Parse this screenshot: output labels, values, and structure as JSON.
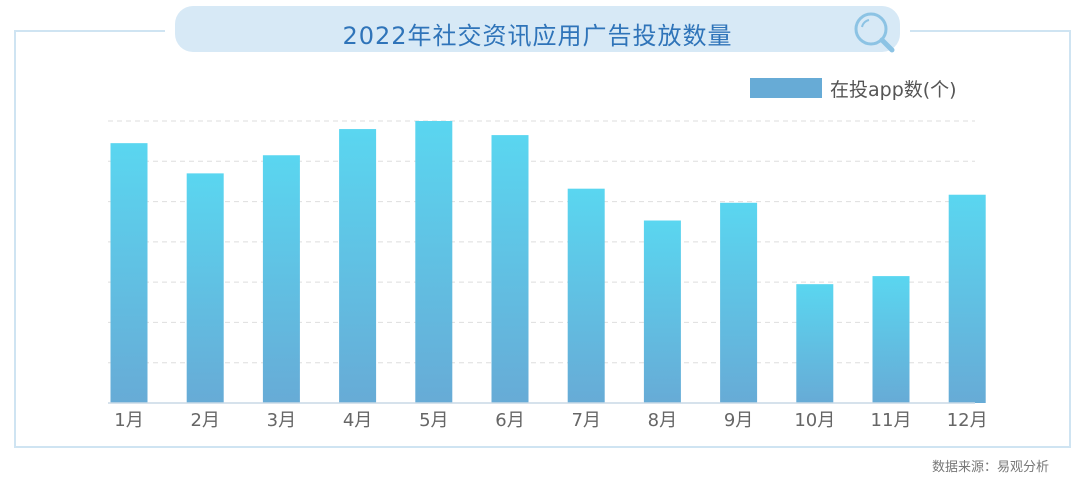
{
  "title": "2022年社交资讯应用广告投放数量",
  "source": "数据来源：易观分析",
  "legend": {
    "label": "在投app数(个)"
  },
  "colors": {
    "bar_top": "#5ad6f0",
    "bar_bottom": "#67abd6",
    "grid": "#dedede",
    "axis": "#c9d9e6",
    "title": "#2f74b9"
  },
  "icons": {
    "title_icon": "search-icon"
  },
  "chart_data": {
    "type": "bar",
    "title": "2022年社交资讯应用广告投放数量",
    "categories": [
      "1月",
      "2月",
      "3月",
      "4月",
      "5月",
      "6月",
      "7月",
      "8月",
      "9月",
      "10月",
      "11月",
      "12月"
    ],
    "series": [
      {
        "name": "在投app数(个)",
        "values": [
          6.45,
          5.7,
          6.15,
          6.8,
          7.0,
          6.65,
          5.32,
          4.53,
          4.97,
          2.95,
          3.15,
          5.17
        ]
      }
    ],
    "ylim": [
      0,
      7
    ],
    "y_ticks_hidden": true,
    "grid": true,
    "legend_position": "top-right"
  }
}
